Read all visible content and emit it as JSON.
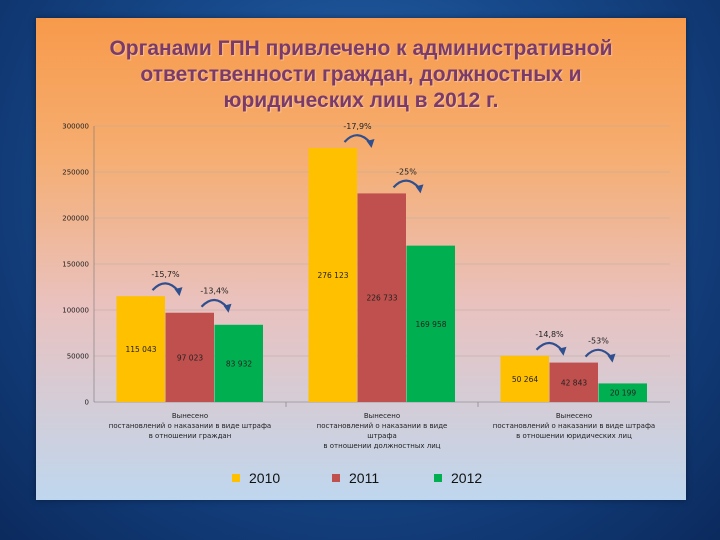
{
  "slide": {
    "title_lines": [
      "Органами ГПН привлечено к административной",
      "ответственности граждан, должностных и",
      "юридических лиц в 2012 г."
    ]
  },
  "chart_data": {
    "type": "bar",
    "title": "",
    "xlabel": "",
    "ylabel": "",
    "ylim": [
      0,
      300000
    ],
    "yticks": [
      "300000",
      "250000",
      "200000",
      "150000",
      "100000",
      "50000",
      "0"
    ],
    "grid": true,
    "legend_position": "bottom",
    "categories": [
      [
        "Вынесено",
        "постановлений о наказании в виде штрафа",
        "в отношении граждан"
      ],
      [
        "Вынесено",
        "постановлений о наказании в виде",
        "штрафа",
        "в отношении должностных лиц"
      ],
      [
        "Вынесено",
        "постановлений о наказании в виде штрафа",
        "в отношении юридических лиц"
      ]
    ],
    "series": [
      {
        "name": "2010",
        "color": "#ffc000",
        "values": [
          115043,
          276123,
          50264
        ],
        "labels": [
          "115 043",
          "276 123",
          "50 264"
        ]
      },
      {
        "name": "2011",
        "color": "#c0504d",
        "values": [
          97023,
          226733,
          42843
        ],
        "labels": [
          "97 023",
          "226 733",
          "42 843"
        ]
      },
      {
        "name": "2012",
        "color": "#00b050",
        "values": [
          83932,
          169958,
          20199
        ],
        "labels": [
          "83 932",
          "169 958",
          "20 199"
        ]
      }
    ],
    "annotations": [
      {
        "text": "-15,7%",
        "category": 0,
        "from_series": 0
      },
      {
        "text": "-13,4%",
        "category": 0,
        "from_series": 1
      },
      {
        "text": "-17,9%",
        "category": 1,
        "from_series": 0
      },
      {
        "text": "-25%",
        "category": 1,
        "from_series": 1
      },
      {
        "text": "-14,8%",
        "category": 2,
        "from_series": 0
      },
      {
        "text": "-53%",
        "category": 2,
        "from_series": 1
      }
    ]
  }
}
